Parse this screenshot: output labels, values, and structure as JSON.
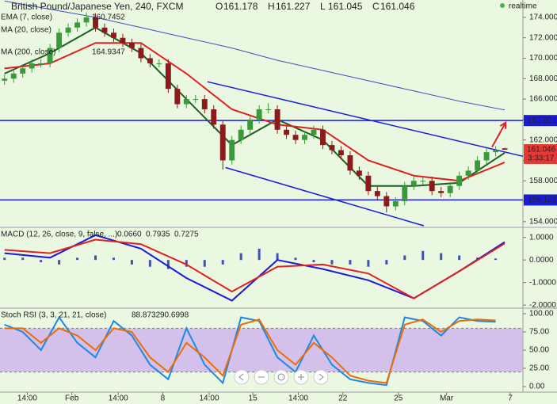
{
  "chart_data": [
    {
      "type": "candlestick",
      "title": "British Pound/Japanese Yen, 240, FXCM",
      "ohlc_labels": [
        "O",
        "H",
        "L",
        "C"
      ],
      "realtime": "realtime",
      "countdown": "3:33:17",
      "up_color": "#3a9a3a",
      "down_color": "#8b1a1a",
      "xlim": [
        -0.5,
        57
      ],
      "ylim": [
        153.6,
        175.7
      ],
      "yticks": [
        {
          "value": 154,
          "label": "154.000"
        },
        {
          "value": 156,
          "label": "156.000"
        },
        {
          "value": 158,
          "label": "158.000"
        },
        {
          "value": 160,
          "label": "160.000"
        },
        {
          "value": 162,
          "label": "162.000"
        },
        {
          "value": 164,
          "label": "164.000"
        },
        {
          "value": 166,
          "label": "166.000"
        },
        {
          "value": 168,
          "label": "168.000"
        },
        {
          "value": 170,
          "label": "170.000"
        },
        {
          "value": 172,
          "label": "172.000"
        },
        {
          "value": 174,
          "label": "174.000"
        }
      ],
      "candles": [
        [
          167.8,
          168.4,
          167.4,
          168
        ],
        [
          168,
          168.9,
          167.6,
          168.5
        ],
        [
          168.5,
          169.4,
          168.1,
          169
        ],
        [
          169,
          169.9,
          168.6,
          169.5
        ],
        [
          169.5,
          169.9,
          169.1,
          169.5
        ],
        [
          169.5,
          171.4,
          169.1,
          171
        ],
        [
          171,
          172.9,
          170.6,
          172.5
        ],
        [
          172.5,
          173.4,
          172.1,
          173
        ],
        [
          173,
          173.9,
          172.6,
          173.5
        ],
        [
          173.5,
          174.5,
          173.1,
          174
        ],
        [
          174,
          174.4,
          172.6,
          173
        ],
        [
          173,
          173.4,
          172.1,
          172.5
        ],
        [
          172.5,
          172.9,
          171.6,
          172
        ],
        [
          172,
          172.4,
          171.1,
          171.5
        ],
        [
          171.5,
          171.9,
          170.6,
          171
        ],
        [
          171,
          171.4,
          169.6,
          170
        ],
        [
          170,
          170.4,
          169.1,
          169.5
        ],
        [
          169.5,
          169.9,
          169.1,
          169.5
        ],
        [
          169.5,
          169.9,
          166.6,
          167
        ],
        [
          167,
          167.4,
          165.1,
          165.5
        ],
        [
          165.5,
          166.4,
          165.1,
          166
        ],
        [
          166,
          166.4,
          165.6,
          166
        ],
        [
          166,
          166.4,
          164.6,
          165
        ],
        [
          165,
          165.4,
          163.1,
          163.5
        ],
        [
          163.5,
          163.9,
          159.1,
          160
        ],
        [
          160,
          162.4,
          159.6,
          162
        ],
        [
          162,
          163.4,
          161.6,
          163
        ],
        [
          163,
          164.4,
          162.6,
          164
        ],
        [
          164,
          165.4,
          163.6,
          165
        ],
        [
          165,
          165.6,
          164.6,
          165
        ],
        [
          165,
          165.4,
          162.6,
          163
        ],
        [
          163,
          163.4,
          162.1,
          162.5
        ],
        [
          162.5,
          162.9,
          161.6,
          162
        ],
        [
          162,
          162.9,
          161.6,
          162.5
        ],
        [
          162.5,
          163.4,
          162.1,
          163
        ],
        [
          163,
          163.4,
          161.1,
          161.5
        ],
        [
          161.5,
          161.9,
          160.6,
          161
        ],
        [
          161,
          161.4,
          160.1,
          160.5
        ],
        [
          160.5,
          160.9,
          158.6,
          159
        ],
        [
          159,
          159.4,
          158.1,
          158.5
        ],
        [
          158.5,
          158.9,
          156.6,
          157
        ],
        [
          157,
          157.4,
          156.1,
          156.5
        ],
        [
          156.5,
          156.9,
          154.9,
          155.5
        ],
        [
          155.5,
          156.4,
          155.1,
          156
        ],
        [
          156,
          157.9,
          155.6,
          157.5
        ],
        [
          157.5,
          158.4,
          157.1,
          158
        ],
        [
          158,
          158.4,
          157.6,
          158
        ],
        [
          158,
          158.4,
          156.6,
          157
        ],
        [
          157,
          157.4,
          156.4,
          156.8
        ],
        [
          156.8,
          157.9,
          156.4,
          157.5
        ],
        [
          157.5,
          158.9,
          157.1,
          158.5
        ],
        [
          158.5,
          159.4,
          158.1,
          159
        ],
        [
          159,
          160.4,
          158.6,
          160
        ],
        [
          160,
          161.2,
          159.6,
          160.8
        ],
        [
          160.8,
          161.4,
          160.4,
          161.0
        ],
        [
          161.178,
          161.227,
          161.045,
          161.046
        ]
      ],
      "series": [
        {
          "name": "EMA (7, close)",
          "legend_value": "160.7452",
          "color": "#1b5e20",
          "x": [
            0,
            5,
            10,
            15,
            20,
            25,
            30,
            35,
            40,
            45,
            50,
            55
          ],
          "values": [
            168.5,
            170.5,
            173,
            170.5,
            166,
            161.5,
            164,
            162,
            157.5,
            157.5,
            157.8,
            160.7452
          ]
        },
        {
          "name": "MA (20, close)",
          "color": "#e02020",
          "x": [
            0,
            5,
            10,
            15,
            20,
            25,
            30,
            35,
            40,
            45,
            50,
            55
          ],
          "values": [
            169,
            169.5,
            171.5,
            171.5,
            168.5,
            165,
            163.5,
            163,
            160,
            158.5,
            158,
            159.8
          ]
        },
        {
          "name": "MA (200, close)",
          "legend_value": "164.9347",
          "color": "#3f51b5",
          "x": [
            0,
            5,
            10,
            15,
            20,
            25,
            30,
            35,
            40,
            45,
            50,
            55
          ],
          "values": [
            175.6,
            174.8,
            174,
            173,
            172,
            171,
            169.8,
            168.8,
            167.8,
            166.8,
            165.8,
            164.9347
          ]
        }
      ],
      "hlines": [
        {
          "value": 163.901,
          "color": "#1a1adb"
        },
        {
          "value": 156.126,
          "color": "#1a1adb"
        }
      ],
      "trendlines": [
        {
          "points": [
            22.3,
            167.7,
            57,
            160.4
          ],
          "color": "#1a1adb"
        },
        {
          "points": [
            24.3,
            159.3,
            46.1,
            153.6
          ],
          "color": "#1a1adb"
        }
      ],
      "arrow": {
        "points": [
          53.6,
          161.3,
          55.1,
          163.7
        ],
        "color": "#e02020"
      }
    },
    {
      "type": "line",
      "title": "MACD (12, 26, close, 9, false, ...)",
      "legend_values": [
        "0.0660",
        "0.7935",
        "0.7275"
      ],
      "legend_colors": [
        "#3f51b5",
        "#1a1adb",
        "#e02020"
      ],
      "xlim": [
        -0.5,
        57
      ],
      "ylim": [
        -2.1,
        1.41
      ],
      "yticks": [
        {
          "value": 1,
          "label": "1.0000"
        },
        {
          "value": 0,
          "label": "0.0000"
        },
        {
          "value": -1,
          "label": "-1.0000"
        },
        {
          "value": -2,
          "label": "-2.0000"
        }
      ],
      "histogram": {
        "color": "#3f51b5",
        "x": [
          0,
          2,
          4,
          6,
          8,
          10,
          12,
          14,
          16,
          18,
          20,
          22,
          24,
          26,
          28,
          30,
          32,
          34,
          36,
          38,
          40,
          42,
          44,
          46,
          48,
          50,
          52,
          54
        ],
        "values": [
          0.1,
          0.1,
          -0.1,
          -0.2,
          0.1,
          0.2,
          0.1,
          -0.2,
          -0.3,
          -0.4,
          -0.3,
          -0.3,
          -0.2,
          0.3,
          0.5,
          0.3,
          0.1,
          -0.1,
          -0.2,
          -0.2,
          -0.3,
          -0.2,
          0.2,
          0.4,
          0.3,
          0.2,
          0.1,
          0.066
        ]
      },
      "series": [
        {
          "color": "#1a1adb",
          "x": [
            0,
            5,
            10,
            15,
            20,
            25,
            30,
            35,
            40,
            45,
            50,
            55
          ],
          "values": [
            0.3,
            0.1,
            1.1,
            0.5,
            -0.8,
            -1.8,
            0.0,
            -0.4,
            -0.9,
            -1.7,
            -0.5,
            0.7935
          ]
        },
        {
          "color": "#e02020",
          "x": [
            0,
            5,
            10,
            15,
            20,
            25,
            30,
            35,
            40,
            45,
            50,
            55
          ],
          "values": [
            0.45,
            0.3,
            0.9,
            0.7,
            -0.2,
            -1.4,
            -0.3,
            -0.2,
            -0.6,
            -1.7,
            -0.5,
            0.7275
          ]
        }
      ]
    },
    {
      "type": "line",
      "title": "Stoch RSI (3, 3, 21, 21, close)",
      "legend_values": [
        "88.8732",
        "90.6998"
      ],
      "legend_colors": [
        "#1e88e5",
        "#ef6c00"
      ],
      "xlim": [
        -0.5,
        57
      ],
      "ylim": [
        -7.6,
        106.5
      ],
      "band": [
        20,
        80
      ],
      "band_color": "#c9a8f0",
      "yticks": [
        {
          "value": 100,
          "label": "100.00"
        },
        {
          "value": 75,
          "label": "75.00"
        },
        {
          "value": 50,
          "label": "50.00"
        },
        {
          "value": 25,
          "label": "25.00"
        },
        {
          "value": 0,
          "label": "0.00"
        }
      ],
      "xticks": [
        {
          "value": 2.5,
          "label": "14:00"
        },
        {
          "value": 7.4,
          "label": "Feb"
        },
        {
          "value": 12.5,
          "label": "14:00"
        },
        {
          "value": 17.4,
          "label": "8"
        },
        {
          "value": 22.5,
          "label": "14:00"
        },
        {
          "value": 27.3,
          "label": "15"
        },
        {
          "value": 32.3,
          "label": "14:00"
        },
        {
          "value": 37.2,
          "label": "22"
        },
        {
          "value": 43.3,
          "label": "25"
        },
        {
          "value": 48.6,
          "label": "Mar"
        },
        {
          "value": 55.6,
          "label": "7"
        }
      ],
      "series": [
        {
          "color": "#1e88e5",
          "x": [
            0,
            2,
            4,
            6,
            8,
            10,
            12,
            14,
            16,
            18,
            20,
            22,
            24,
            26,
            28,
            30,
            32,
            34,
            36,
            38,
            40,
            42,
            44,
            46,
            48,
            50,
            52,
            54
          ],
          "values": [
            85,
            75,
            50,
            95,
            60,
            40,
            90,
            70,
            30,
            10,
            80,
            30,
            5,
            95,
            90,
            40,
            20,
            70,
            30,
            10,
            5,
            2,
            95,
            90,
            70,
            95,
            90,
            88.8732
          ]
        },
        {
          "color": "#ef6c00",
          "x": [
            0,
            2,
            4,
            6,
            8,
            10,
            12,
            14,
            16,
            18,
            20,
            22,
            24,
            26,
            28,
            30,
            32,
            34,
            36,
            38,
            40,
            42,
            44,
            46,
            48,
            50,
            52,
            54
          ],
          "values": [
            80,
            80,
            60,
            80,
            70,
            50,
            80,
            75,
            40,
            20,
            60,
            40,
            15,
            85,
            92,
            50,
            30,
            60,
            40,
            15,
            8,
            5,
            85,
            92,
            75,
            90,
            92,
            90.6998
          ]
        }
      ]
    }
  ]
}
